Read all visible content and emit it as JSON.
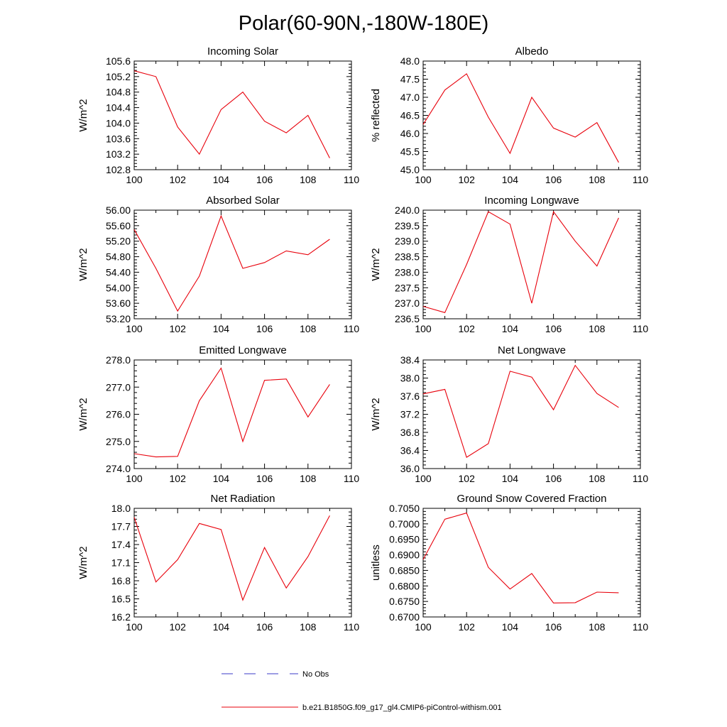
{
  "title": "Polar(60-90N,-180W-180E)",
  "colors": {
    "series": "#e8000b",
    "obs": "#3b3bc8",
    "axis": "#000000",
    "background": "#ffffff"
  },
  "chart_data": [
    {
      "type": "line",
      "title": "Incoming Solar",
      "ylabel": "W/m^2",
      "x": [
        100,
        101,
        102,
        103,
        104,
        105,
        106,
        107,
        108,
        109
      ],
      "xlim": [
        100,
        110
      ],
      "xticks": [
        "100",
        "102",
        "104",
        "106",
        "108",
        "110"
      ],
      "ylim": [
        102.8,
        105.6
      ],
      "yticks": [
        "102.8",
        "103.2",
        "103.6",
        "104.0",
        "104.4",
        "104.8",
        "105.2",
        "105.6"
      ],
      "values": [
        105.35,
        105.2,
        103.9,
        103.2,
        104.35,
        104.8,
        104.05,
        103.75,
        104.2,
        103.1
      ]
    },
    {
      "type": "line",
      "title": "Albedo",
      "ylabel": "% reflected",
      "x": [
        100,
        101,
        102,
        103,
        104,
        105,
        106,
        107,
        108,
        109
      ],
      "xlim": [
        100,
        110
      ],
      "xticks": [
        "100",
        "102",
        "104",
        "106",
        "108",
        "110"
      ],
      "ylim": [
        45.0,
        48.0
      ],
      "yticks": [
        "45.0",
        "45.5",
        "46.0",
        "46.5",
        "47.0",
        "47.5",
        "48.0"
      ],
      "values": [
        46.25,
        47.2,
        47.65,
        46.45,
        45.45,
        47.0,
        46.15,
        45.9,
        46.3,
        45.2
      ]
    },
    {
      "type": "line",
      "title": "Absorbed Solar",
      "ylabel": "W/m^2",
      "x": [
        100,
        101,
        102,
        103,
        104,
        105,
        106,
        107,
        108,
        109
      ],
      "xlim": [
        100,
        110
      ],
      "xticks": [
        "100",
        "102",
        "104",
        "106",
        "108",
        "110"
      ],
      "ylim": [
        53.2,
        56.0
      ],
      "yticks": [
        "53.20",
        "53.60",
        "54.00",
        "54.40",
        "54.80",
        "55.20",
        "55.60",
        "56.00"
      ],
      "values": [
        55.5,
        54.5,
        53.4,
        54.3,
        55.85,
        54.5,
        54.65,
        54.95,
        54.85,
        55.25
      ]
    },
    {
      "type": "line",
      "title": "Incoming Longwave",
      "ylabel": "W/m^2",
      "x": [
        100,
        101,
        102,
        103,
        104,
        105,
        106,
        107,
        108,
        109
      ],
      "xlim": [
        100,
        110
      ],
      "xticks": [
        "100",
        "102",
        "104",
        "106",
        "108",
        "110"
      ],
      "ylim": [
        236.5,
        240.0
      ],
      "yticks": [
        "236.5",
        "237.0",
        "237.5",
        "238.0",
        "238.5",
        "239.0",
        "239.5",
        "240.0"
      ],
      "values": [
        236.9,
        236.7,
        238.25,
        239.95,
        239.55,
        237.0,
        239.95,
        239.0,
        238.2,
        239.75
      ]
    },
    {
      "type": "line",
      "title": "Emitted Longwave",
      "ylabel": "W/m^2",
      "x": [
        100,
        101,
        102,
        103,
        104,
        105,
        106,
        107,
        108,
        109
      ],
      "xlim": [
        100,
        110
      ],
      "xticks": [
        "100",
        "102",
        "104",
        "106",
        "108",
        "110"
      ],
      "ylim": [
        274.0,
        278.0
      ],
      "yticks": [
        "274.0",
        "275.0",
        "276.0",
        "277.0",
        "278.0"
      ],
      "values": [
        274.55,
        274.43,
        274.45,
        276.5,
        277.7,
        275.0,
        277.25,
        277.3,
        275.9,
        277.1
      ]
    },
    {
      "type": "line",
      "title": "Net Longwave",
      "ylabel": "W/m^2",
      "x": [
        100,
        101,
        102,
        103,
        104,
        105,
        106,
        107,
        108,
        109
      ],
      "xlim": [
        100,
        110
      ],
      "xticks": [
        "100",
        "102",
        "104",
        "106",
        "108",
        "110"
      ],
      "ylim": [
        36.0,
        38.4
      ],
      "yticks": [
        "36.0",
        "36.4",
        "36.8",
        "37.2",
        "37.6",
        "38.0",
        "38.4"
      ],
      "values": [
        37.65,
        37.75,
        36.25,
        36.55,
        38.15,
        38.02,
        37.3,
        38.28,
        37.66,
        37.35
      ]
    },
    {
      "type": "line",
      "title": "Net Radiation",
      "ylabel": "W/m^2",
      "x": [
        100,
        101,
        102,
        103,
        104,
        105,
        106,
        107,
        108,
        109
      ],
      "xlim": [
        100,
        110
      ],
      "xticks": [
        "100",
        "102",
        "104",
        "106",
        "108",
        "110"
      ],
      "ylim": [
        16.2,
        18.0
      ],
      "yticks": [
        "16.2",
        "16.5",
        "16.8",
        "17.1",
        "17.4",
        "17.7",
        "18.0"
      ],
      "values": [
        17.85,
        16.78,
        17.15,
        17.75,
        17.65,
        16.48,
        17.35,
        16.68,
        17.2,
        17.88
      ]
    },
    {
      "type": "line",
      "title": "Ground Snow Covered Fraction",
      "ylabel": "unitless",
      "x": [
        100,
        101,
        102,
        103,
        104,
        105,
        106,
        107,
        108,
        109
      ],
      "xlim": [
        100,
        110
      ],
      "xticks": [
        "100",
        "102",
        "104",
        "106",
        "108",
        "110"
      ],
      "ylim": [
        0.67,
        0.705
      ],
      "yticks": [
        "0.6700",
        "0.6750",
        "0.6800",
        "0.6850",
        "0.6900",
        "0.6950",
        "0.7000",
        "0.7050"
      ],
      "values": [
        0.6885,
        0.7015,
        0.7035,
        0.686,
        0.679,
        0.684,
        0.6745,
        0.6746,
        0.678,
        0.6778
      ]
    }
  ],
  "legend": {
    "obs_label": "No Obs",
    "model_label": "b.e21.B1850G.f09_g17_gl4.CMIP6-piControl-withism.001"
  }
}
